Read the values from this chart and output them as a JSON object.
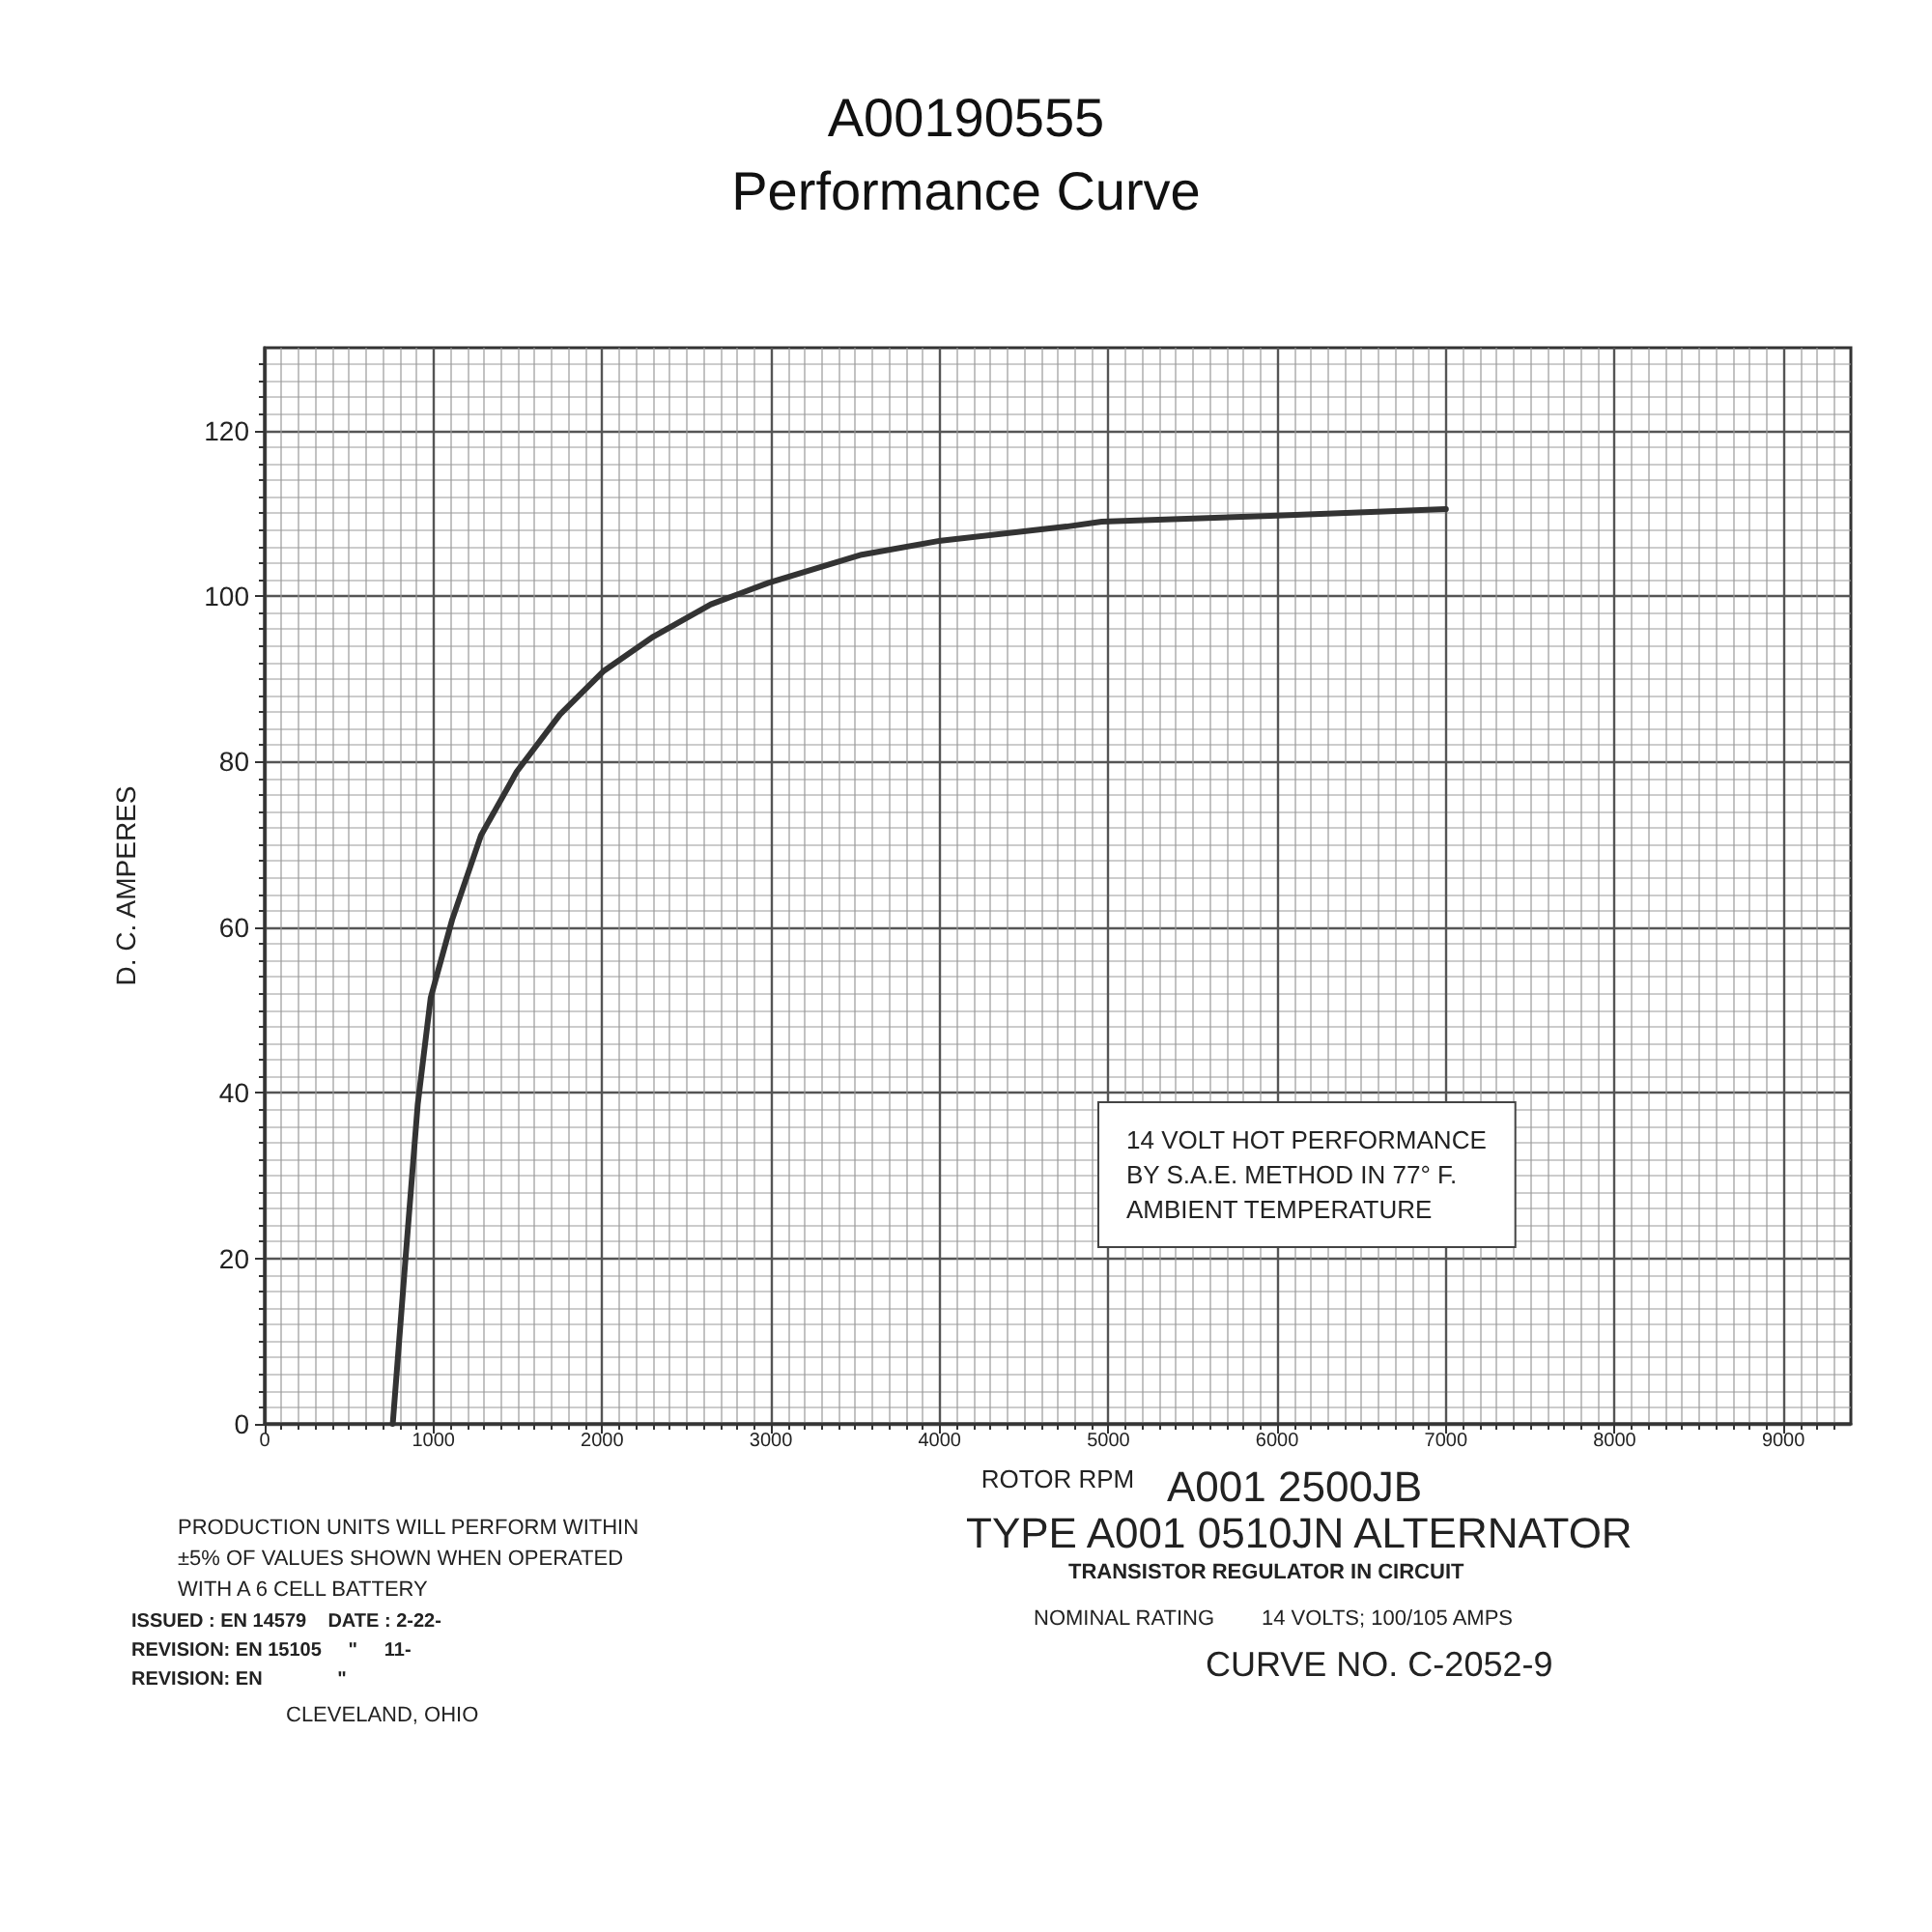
{
  "chart_data": {
    "type": "line",
    "title": "A00190555",
    "subtitle": "Performance Curve",
    "xlabel": "ROTOR RPM",
    "ylabel": "D. C. AMPERES",
    "x": [
      759,
      834,
      907,
      984,
      1111,
      1282,
      1494,
      1750,
      2006,
      2303,
      2644,
      2985,
      3538,
      4007,
      4752,
      4960,
      5961,
      7000
    ],
    "series": [
      {
        "color": "#333333",
        "values": [
          0,
          19.8,
          38.6,
          51.5,
          60.9,
          71.1,
          78.8,
          85.7,
          90.9,
          95.1,
          99,
          101.6,
          105,
          106.7,
          108.4,
          109,
          109.7,
          110.5
        ]
      }
    ],
    "xlim": [
      0,
      9400
    ],
    "xticks": [
      0,
      1000,
      2000,
      3000,
      4000,
      5000,
      6000,
      7000,
      8000,
      9000
    ],
    "ylim": [
      0,
      130
    ],
    "yticks": [
      0,
      20,
      40,
      60,
      80,
      100,
      120
    ],
    "grid": true,
    "marker": "none",
    "line_style": "solid",
    "annotations": [
      "14 VOLT HOT PERFORMANCE\nBY S.A.E. METHOD IN 77° F.\nAMBIENT TEMPERATURE",
      "PRODUCTION UNITS WILL PERFORM WITHIN\n±5% OF VALUES SHOWN WHEN OPERATED\nWITH A 6 CELL BATTERY",
      "ISSUED : EN 14579    DATE : 2-22-\nREVISION: EN 15105     \"     11-\nREVISION: EN              \"",
      "CLEVELAND, OHIO",
      "A001 2500JB",
      "TYPE A001 0510JN ALTERNATOR",
      "TRANSISTOR REGULATOR IN CIRCUIT",
      "NOMINAL RATING        14 VOLTS; 100/105 AMPS",
      "CURVE NO. C-2052-9"
    ]
  }
}
